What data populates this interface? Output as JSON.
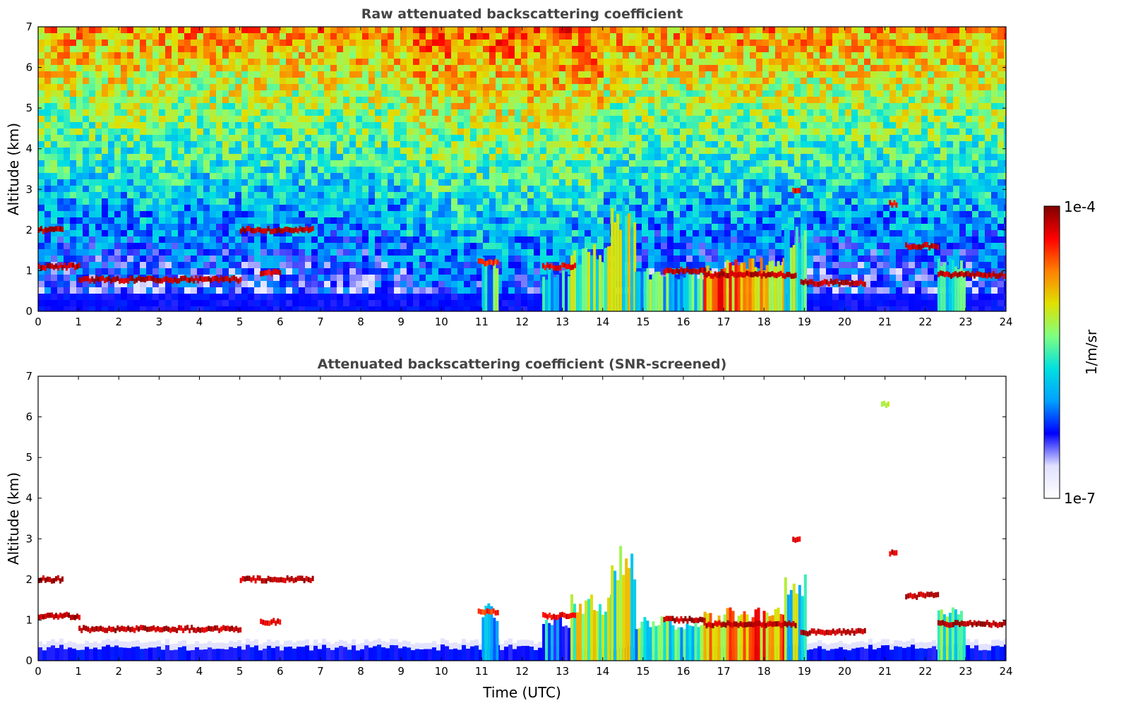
{
  "colormap": [
    "#ffffff",
    "#e0e0ff",
    "#0000ff",
    "#00a0ff",
    "#00e0e0",
    "#80ff80",
    "#e0e000",
    "#ff8000",
    "#ff0000",
    "#800000"
  ],
  "colorbar": {
    "label": "1/m/sr",
    "max_label": "1e-4",
    "min_label": "1e-7"
  },
  "chart_data": [
    {
      "type": "heatmap",
      "title": "Raw attenuated backscattering coefficient",
      "ylabel": "Altitude (km)",
      "xlabel": "",
      "xlim": [
        0,
        24
      ],
      "ylim": [
        0,
        7
      ],
      "x_ticks": [
        "0",
        "1",
        "2",
        "3",
        "4",
        "5",
        "6",
        "7",
        "8",
        "9",
        "10",
        "11",
        "12",
        "13",
        "14",
        "15",
        "16",
        "17",
        "18",
        "19",
        "20",
        "21",
        "22",
        "23",
        "24"
      ],
      "y_ticks": [
        "0",
        "1",
        "2",
        "3",
        "4",
        "5",
        "6",
        "7"
      ],
      "layers": [
        {
          "x0": 0.0,
          "x1": 0.6,
          "y": 2.0,
          "level": 0.95
        },
        {
          "x0": 0.0,
          "x1": 1.0,
          "y": 1.1,
          "level": 0.95
        },
        {
          "x0": 1.0,
          "x1": 5.0,
          "y": 0.78,
          "level": 0.95
        },
        {
          "x0": 5.0,
          "x1": 6.8,
          "y": 2.0,
          "level": 0.95
        },
        {
          "x0": 5.5,
          "x1": 6.0,
          "y": 0.95,
          "level": 0.9
        },
        {
          "x0": 10.9,
          "x1": 11.4,
          "y": 1.2,
          "level": 0.85
        },
        {
          "x0": 12.5,
          "x1": 13.3,
          "y": 1.1,
          "level": 0.9
        },
        {
          "x0": 15.5,
          "x1": 16.5,
          "y": 1.0,
          "level": 0.95
        },
        {
          "x0": 16.5,
          "x1": 18.8,
          "y": 0.9,
          "level": 0.95
        },
        {
          "x0": 18.9,
          "x1": 20.5,
          "y": 0.7,
          "level": 0.95
        },
        {
          "x0": 21.5,
          "x1": 22.3,
          "y": 1.6,
          "level": 0.95
        },
        {
          "x0": 22.3,
          "x1": 24.0,
          "y": 0.9,
          "level": 0.95
        },
        {
          "x0": 18.7,
          "x1": 18.9,
          "y": 3.0,
          "level": 0.9
        },
        {
          "x0": 21.1,
          "x1": 21.3,
          "y": 2.65,
          "level": 0.9
        }
      ],
      "columns": [
        {
          "x0": 11.0,
          "x1": 11.4,
          "top": 1.3,
          "level": 0.45
        },
        {
          "x0": 12.5,
          "x1": 13.2,
          "top": 1.0,
          "level": 0.35
        },
        {
          "x0": 13.2,
          "x1": 14.2,
          "top": 1.5,
          "level": 0.55
        },
        {
          "x0": 14.2,
          "x1": 14.8,
          "top": 2.6,
          "level": 0.55
        },
        {
          "x0": 14.8,
          "x1": 16.5,
          "top": 1.0,
          "level": 0.45
        },
        {
          "x0": 16.5,
          "x1": 18.5,
          "top": 1.2,
          "level": 0.75
        },
        {
          "x0": 18.5,
          "x1": 19.0,
          "top": 2.0,
          "level": 0.5
        },
        {
          "x0": 22.3,
          "x1": 23.0,
          "top": 1.2,
          "level": 0.5
        }
      ],
      "grid": false
    },
    {
      "type": "heatmap",
      "title": "Attenuated backscattering coefficient (SNR-screened)",
      "ylabel": "Altitude (km)",
      "xlabel": "Time (UTC)",
      "xlim": [
        0,
        24
      ],
      "ylim": [
        0,
        7
      ],
      "x_ticks": [
        "0",
        "1",
        "2",
        "3",
        "4",
        "5",
        "6",
        "7",
        "8",
        "9",
        "10",
        "11",
        "12",
        "13",
        "14",
        "15",
        "16",
        "17",
        "18",
        "19",
        "20",
        "21",
        "22",
        "23",
        "24"
      ],
      "y_ticks": [
        "0",
        "1",
        "2",
        "3",
        "4",
        "5",
        "6",
        "7"
      ],
      "layers": [
        {
          "x0": 0.0,
          "x1": 0.6,
          "y": 2.0,
          "level": 0.95
        },
        {
          "x0": 0.0,
          "x1": 1.0,
          "y": 1.1,
          "level": 0.95
        },
        {
          "x0": 1.0,
          "x1": 5.0,
          "y": 0.78,
          "level": 0.95
        },
        {
          "x0": 5.0,
          "x1": 6.8,
          "y": 2.0,
          "level": 0.95
        },
        {
          "x0": 5.5,
          "x1": 6.0,
          "y": 0.95,
          "level": 0.9
        },
        {
          "x0": 10.9,
          "x1": 11.4,
          "y": 1.2,
          "level": 0.85
        },
        {
          "x0": 12.5,
          "x1": 13.3,
          "y": 1.1,
          "level": 0.9
        },
        {
          "x0": 15.5,
          "x1": 16.5,
          "y": 1.0,
          "level": 0.95
        },
        {
          "x0": 16.5,
          "x1": 18.8,
          "y": 0.9,
          "level": 0.95
        },
        {
          "x0": 18.9,
          "x1": 20.5,
          "y": 0.7,
          "level": 0.95
        },
        {
          "x0": 21.5,
          "x1": 22.3,
          "y": 1.6,
          "level": 0.95
        },
        {
          "x0": 22.3,
          "x1": 24.0,
          "y": 0.9,
          "level": 0.95
        },
        {
          "x0": 18.7,
          "x1": 18.9,
          "y": 3.0,
          "level": 0.9
        },
        {
          "x0": 21.1,
          "x1": 21.3,
          "y": 2.65,
          "level": 0.9
        },
        {
          "x0": 20.9,
          "x1": 21.1,
          "y": 6.3,
          "level": 0.6
        }
      ],
      "columns": [
        {
          "x0": 11.0,
          "x1": 11.4,
          "top": 1.3,
          "level": 0.45
        },
        {
          "x0": 12.5,
          "x1": 13.2,
          "top": 1.0,
          "level": 0.35
        },
        {
          "x0": 13.2,
          "x1": 14.2,
          "top": 1.5,
          "level": 0.55
        },
        {
          "x0": 14.2,
          "x1": 14.8,
          "top": 2.6,
          "level": 0.55
        },
        {
          "x0": 14.8,
          "x1": 16.5,
          "top": 1.0,
          "level": 0.45
        },
        {
          "x0": 16.5,
          "x1": 18.5,
          "top": 1.2,
          "level": 0.75
        },
        {
          "x0": 18.5,
          "x1": 19.0,
          "top": 2.0,
          "level": 0.5
        },
        {
          "x0": 22.3,
          "x1": 23.0,
          "top": 1.2,
          "level": 0.5
        }
      ],
      "grid": false
    }
  ]
}
